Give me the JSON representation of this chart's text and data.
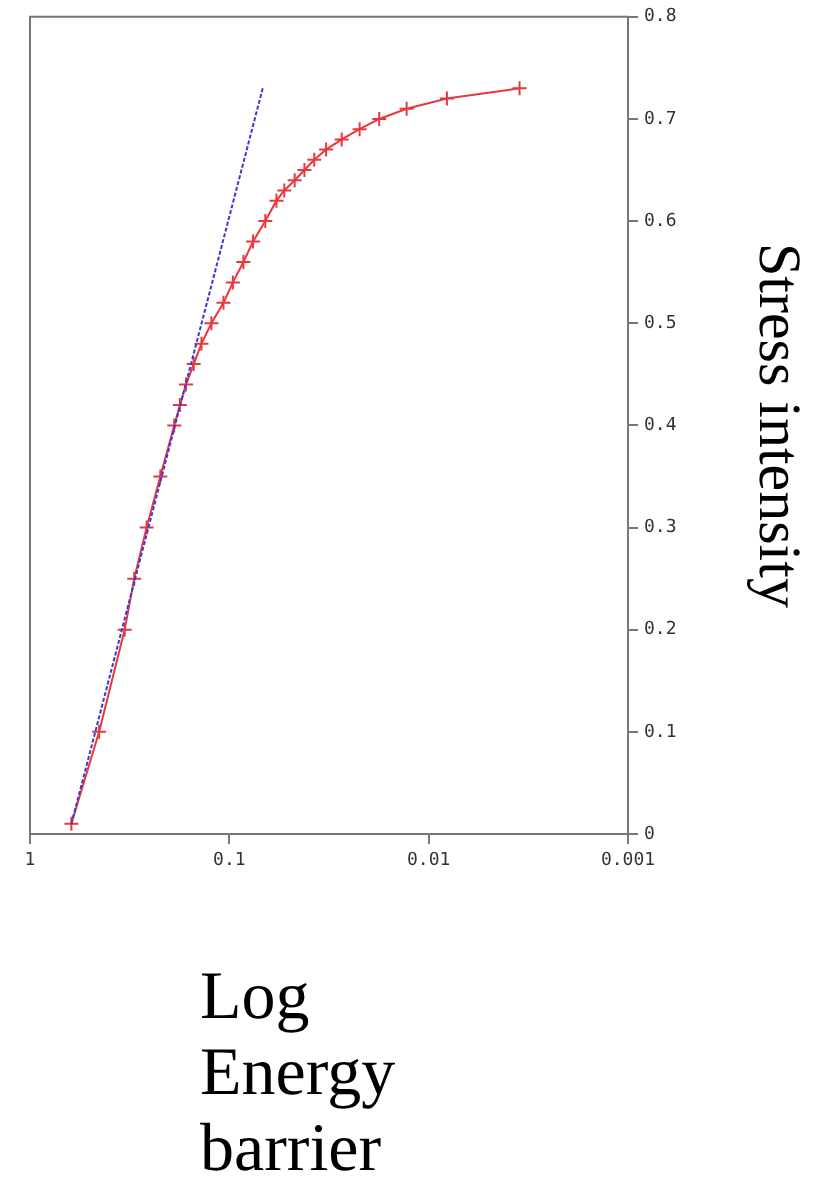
{
  "chart_data": {
    "type": "line",
    "xlabel": "Log Energy barrier",
    "ylabel": "Stress intensity",
    "log": "x",
    "grid": false,
    "legend": false,
    "xlim": [
      1,
      0.001
    ],
    "xticks": [
      1,
      0.1,
      0.01,
      0.001
    ],
    "ylim": [
      0,
      0.8
    ],
    "yticks": [
      0,
      0.1,
      0.2,
      0.3,
      0.4,
      0.5,
      0.6,
      0.7,
      0.8
    ],
    "series": [
      {
        "color": "#e8383d",
        "marker": "cross",
        "line_style": "solid",
        "x": [
          0.62,
          0.45,
          0.335,
          0.3,
          0.26,
          0.222,
          0.189,
          0.177,
          0.165,
          0.151,
          0.138,
          0.123,
          0.107,
          0.096,
          0.085,
          0.076,
          0.066,
          0.058,
          0.053,
          0.047,
          0.042,
          0.0375,
          0.0327,
          0.0273,
          0.0222,
          0.0177,
          0.0129,
          0.0081,
          0.0035
        ],
        "values": [
          0.01,
          0.1,
          0.2,
          0.25,
          0.3,
          0.35,
          0.4,
          0.42,
          0.44,
          0.46,
          0.48,
          0.5,
          0.52,
          0.54,
          0.56,
          0.58,
          0.6,
          0.62,
          0.63,
          0.64,
          0.65,
          0.66,
          0.67,
          0.68,
          0.69,
          0.7,
          0.71,
          0.72,
          0.73
        ]
      },
      {
        "color": "#3a3ad0",
        "marker": "none",
        "line_style": "dashed",
        "x": [
          0.62,
          0.068
        ],
        "values": [
          0.01,
          0.73
        ]
      }
    ]
  }
}
